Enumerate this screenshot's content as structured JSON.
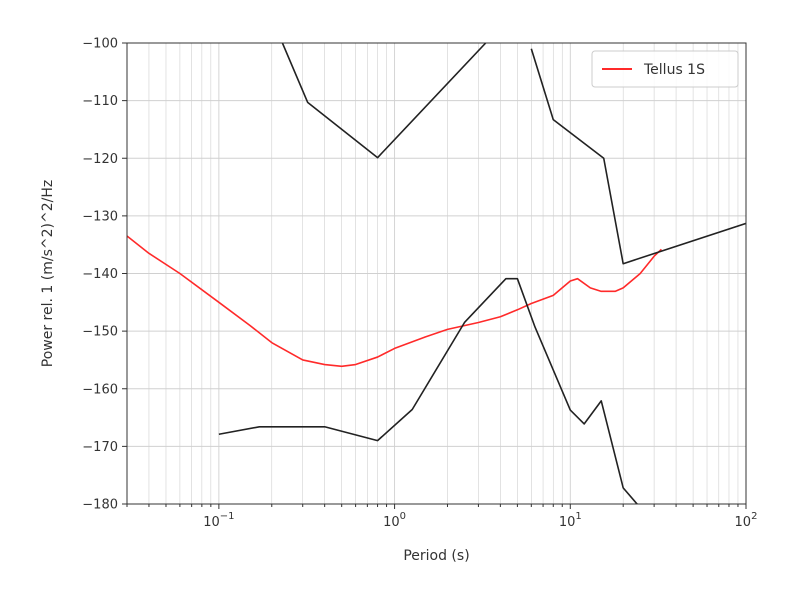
{
  "chart_data": {
    "type": "line",
    "title": "",
    "xlabel": "Period (s)",
    "ylabel": "Power rel. 1 (m/s^2)^2/Hz",
    "x_scale": "log",
    "xlim": [
      0.03,
      100
    ],
    "ylim": [
      -180,
      -100
    ],
    "x_ticks": [
      {
        "value": 0.1,
        "base": "10",
        "exp": "−1"
      },
      {
        "value": 1,
        "base": "10",
        "exp": "0"
      },
      {
        "value": 10,
        "base": "10",
        "exp": "1"
      },
      {
        "value": 100,
        "base": "10",
        "exp": "2"
      }
    ],
    "y_ticks": [
      {
        "value": -100,
        "label": "−100"
      },
      {
        "value": -110,
        "label": "−110"
      },
      {
        "value": -120,
        "label": "−120"
      },
      {
        "value": -130,
        "label": "−130"
      },
      {
        "value": -140,
        "label": "−140"
      },
      {
        "value": -150,
        "label": "−150"
      },
      {
        "value": -160,
        "label": "−160"
      },
      {
        "value": -170,
        "label": "−170"
      },
      {
        "value": -180,
        "label": "−180"
      }
    ],
    "grid": true,
    "legend_position": "top-right",
    "series": [
      {
        "name": "Tellus 1S",
        "color": "#ff2a2a",
        "x": [
          0.03,
          0.04,
          0.06,
          0.1,
          0.15,
          0.2,
          0.3,
          0.4,
          0.5,
          0.6,
          0.8,
          1.0,
          1.5,
          2.0,
          3.0,
          4.0,
          5.0,
          6.0,
          8.0,
          10.0,
          11.0,
          13.0,
          15.0,
          18.0,
          20.0,
          25.0,
          30.0,
          33.0
        ],
        "y": [
          -133.5,
          -136.5,
          -140,
          -145,
          -149,
          -152,
          -155,
          -155.8,
          -156.1,
          -155.8,
          -154.5,
          -153,
          -151,
          -149.7,
          -148.5,
          -147.5,
          -146.3,
          -145.2,
          -143.8,
          -141.3,
          -140.9,
          -142.5,
          -143.1,
          -143.1,
          -142.5,
          -140,
          -137,
          -135.8
        ]
      },
      {
        "color": "#222222",
        "x": [
          0.23,
          0.32,
          0.8,
          3.3
        ],
        "y": [
          -100,
          -110.3,
          -119.9,
          -100
        ]
      },
      {
        "color": "#222222",
        "x": [
          6.0,
          8.0,
          15.5,
          20.0,
          100.0
        ],
        "y": [
          -101,
          -113.3,
          -120,
          -138.3,
          -131.3
        ]
      },
      {
        "color": "#222222",
        "x": [
          0.1,
          0.17,
          0.4,
          0.8,
          1.26,
          2.5,
          4.3,
          5.0,
          6.3,
          10.0,
          12.0,
          15.0,
          20.0,
          24.0,
          25.0
        ],
        "y": [
          -167.9,
          -166.6,
          -166.6,
          -169,
          -163.6,
          -148.5,
          -140.9,
          -140.9,
          -149.3,
          -163.7,
          -166.1,
          -162.1,
          -177.2,
          -180,
          -180.3
        ]
      }
    ]
  }
}
